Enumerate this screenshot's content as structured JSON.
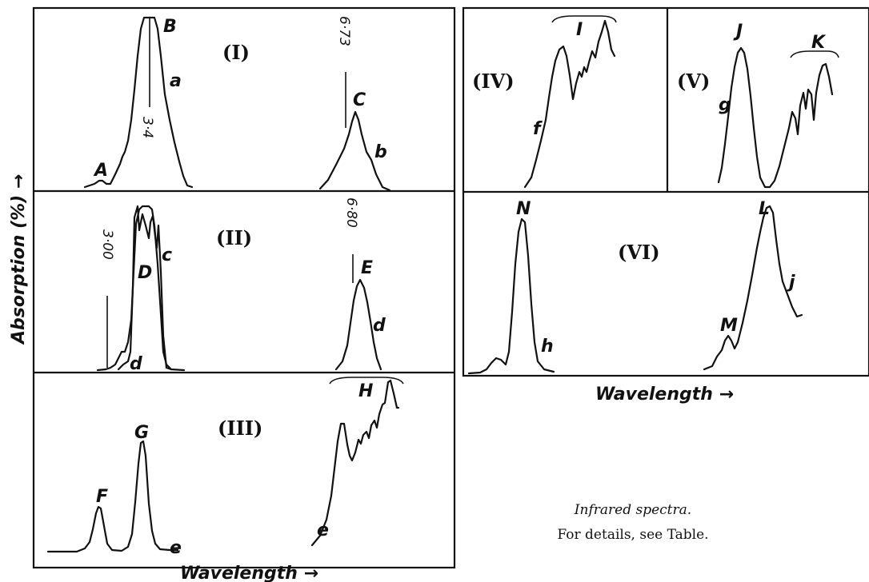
{
  "figure": {
    "y_axis_label": "Absorption (%) →",
    "x_axis_label_left": "Wavelength →",
    "x_axis_label_right": "Wavelength →",
    "caption_line1": "Infrared spectra.",
    "caption_line2": "For details, see Table."
  },
  "panels": [
    {
      "id": "I",
      "label": "(I)",
      "curve_letters": [
        "a",
        "b"
      ],
      "peak_letters": [
        "A",
        "B",
        "C"
      ],
      "wavelength_marks": [
        "3·4",
        "6·73"
      ]
    },
    {
      "id": "II",
      "label": "(II)",
      "curve_letters": [
        "c",
        "d",
        "d"
      ],
      "peak_letters": [
        "D",
        "E"
      ],
      "wavelength_marks": [
        "3·00",
        "6·80"
      ]
    },
    {
      "id": "III",
      "label": "(III)",
      "curve_letters": [
        "e",
        "e"
      ],
      "peak_letters": [
        "F",
        "G",
        "H"
      ]
    },
    {
      "id": "IV",
      "label": "(IV)",
      "curve_letters": [
        "f"
      ],
      "peak_letters": [
        "I"
      ]
    },
    {
      "id": "V",
      "label": "(V)",
      "curve_letters": [
        "g"
      ],
      "peak_letters": [
        "J",
        "K"
      ]
    },
    {
      "id": "VI",
      "label": "(VI)",
      "curve_letters": [
        "h",
        "j"
      ],
      "peak_letters": [
        "N",
        "L",
        "M"
      ]
    }
  ]
}
